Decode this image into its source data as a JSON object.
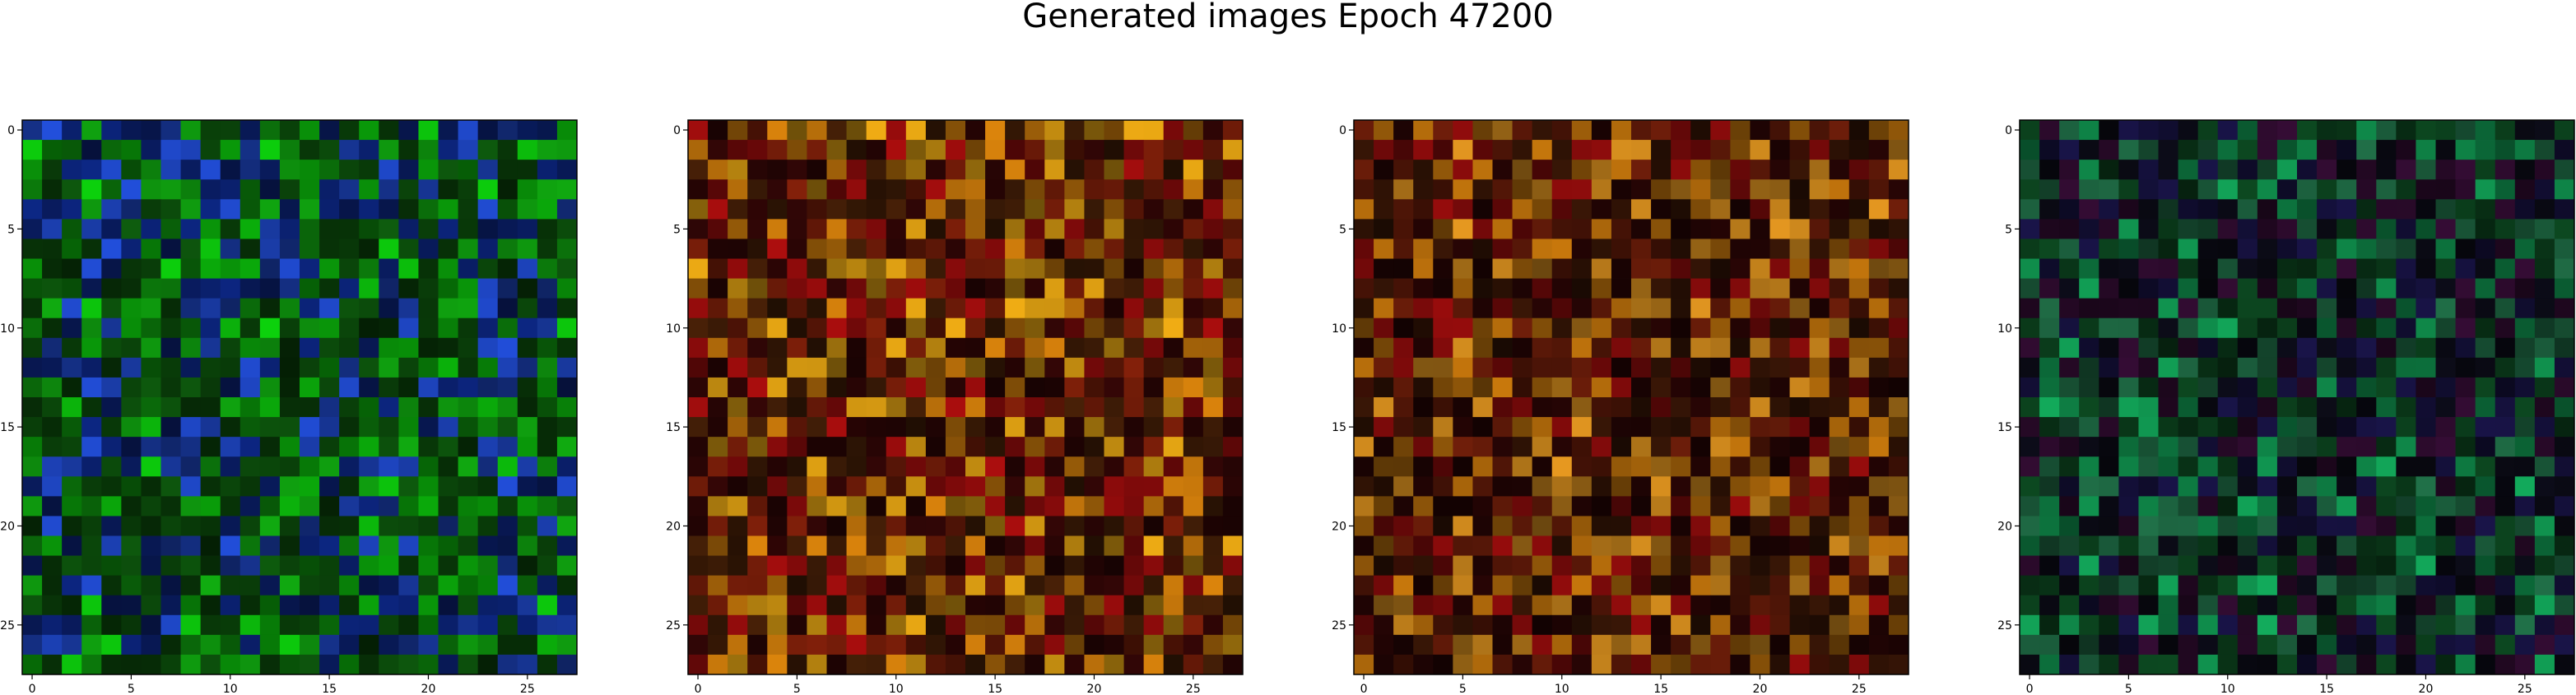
{
  "title": "Generated images Epoch 47200",
  "panels": [
    {
      "tint": "green",
      "colors": [
        "#0b4a0b",
        "#0d8a0d",
        "#0aa80a",
        "#1b3fb0",
        "#0a1f6a",
        "#083808"
      ]
    },
    {
      "tint": "autumn",
      "colors": [
        "#6a1a08",
        "#b06a0a",
        "#8a0b0b",
        "#3a1a06",
        "#c08a10",
        "#2a0505"
      ]
    },
    {
      "tint": "autumn",
      "colors": [
        "#5a1808",
        "#a0600a",
        "#7a0a0a",
        "#2e1205",
        "#b87a1a",
        "#200404"
      ]
    },
    {
      "tint": "teal",
      "colors": [
        "#0a3a1a",
        "#0f8a4a",
        "#14103a",
        "#2a0a2a",
        "#0a0a14",
        "#1a5a3a"
      ]
    }
  ],
  "axis": {
    "ticks": [
      "0",
      "5",
      "10",
      "15",
      "20",
      "25"
    ]
  }
}
